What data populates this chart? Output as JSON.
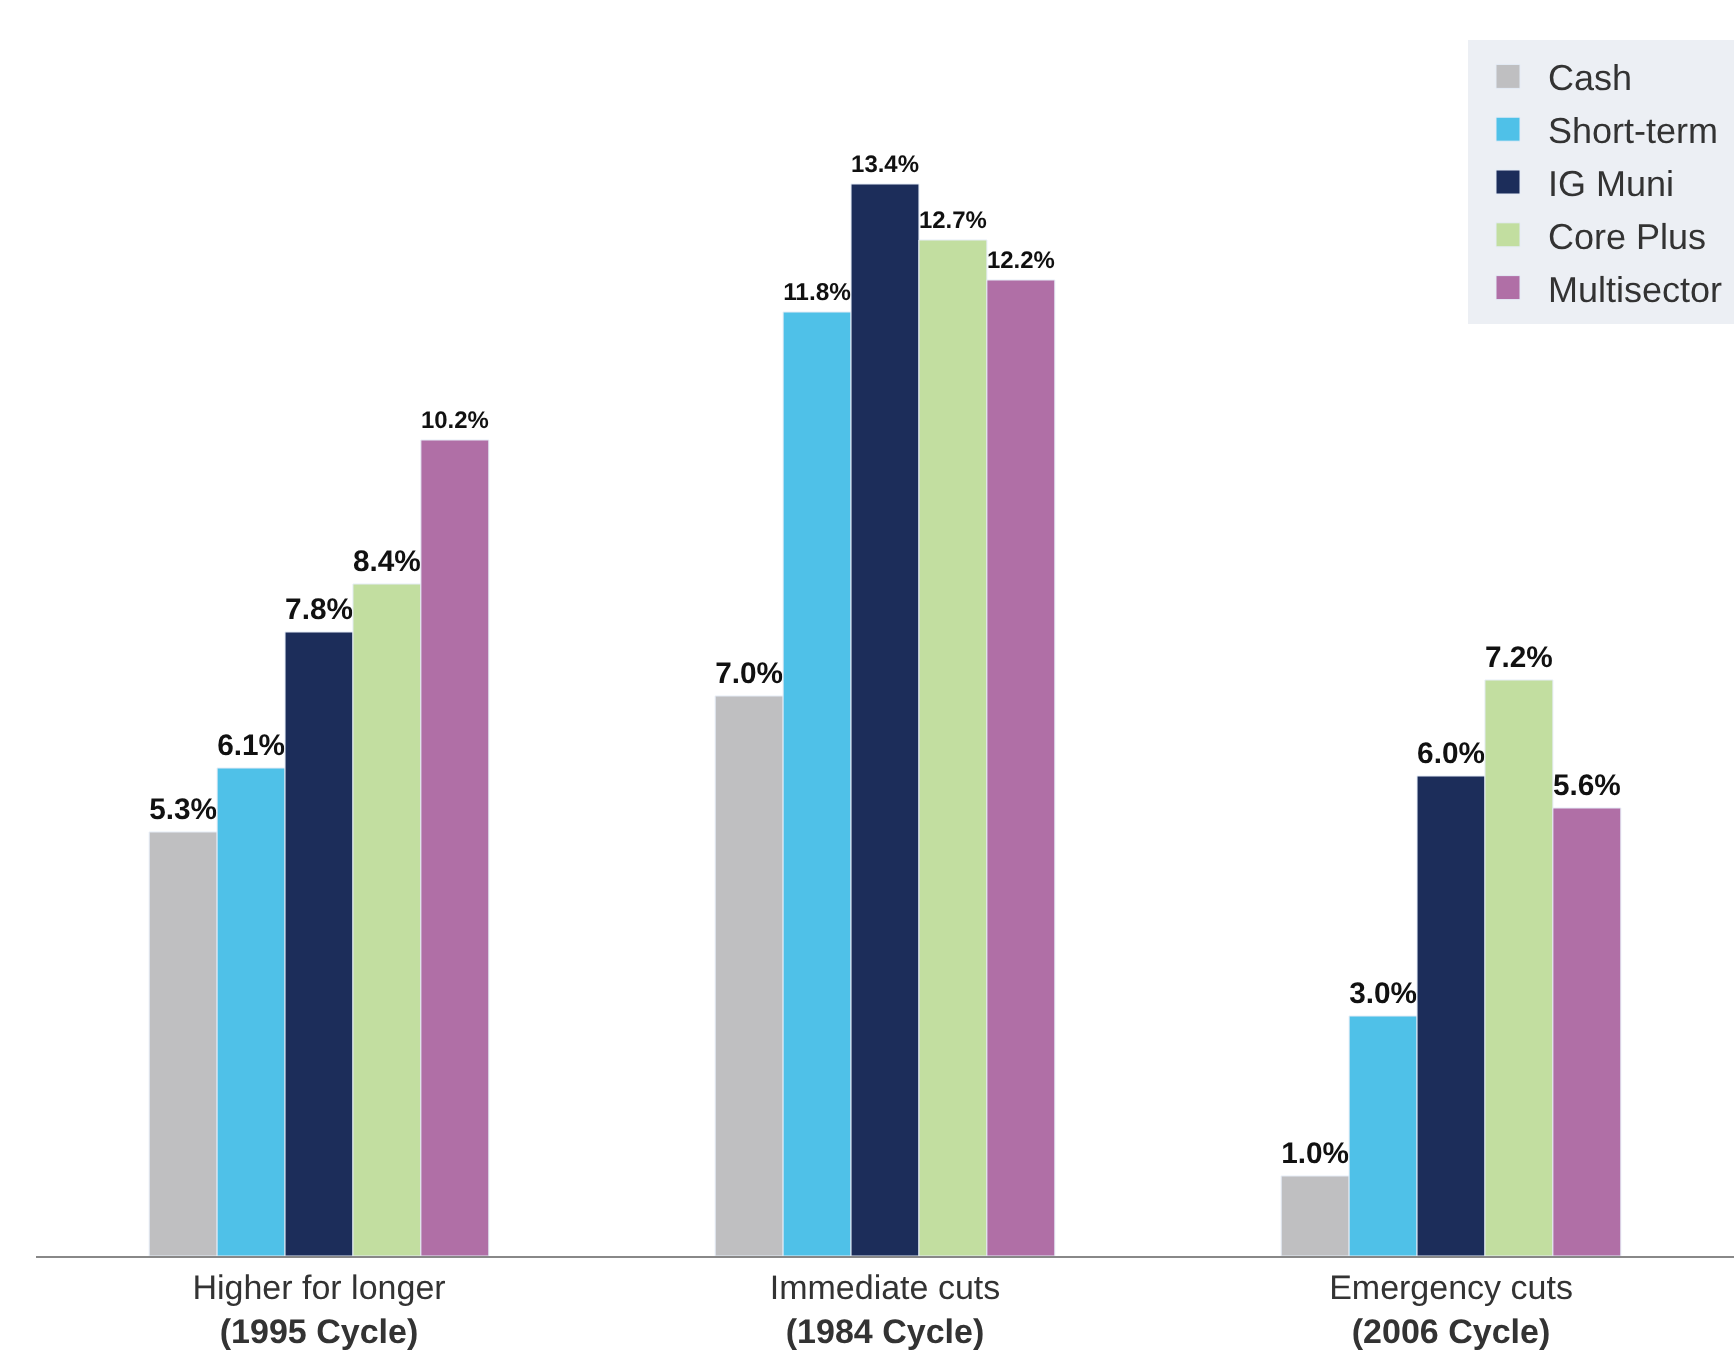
{
  "chart_data": {
    "type": "bar",
    "categories": [
      "Higher for longer\n(1995 Cycle)",
      "Immediate cuts\n(1984 Cycle)",
      "Emergency cuts\n(2006 Cycle)"
    ],
    "series": [
      {
        "name": "Cash",
        "color": "#bfbfc1",
        "values": [
          5.3,
          7.0,
          1.0
        ],
        "value_labels": [
          "5.3%",
          "7.0%",
          "1.0%"
        ]
      },
      {
        "name": "Short-term",
        "color": "#4fc1e8",
        "values": [
          6.1,
          11.8,
          3.0
        ],
        "value_labels": [
          "6.1%",
          "11.8%",
          "3.0%"
        ]
      },
      {
        "name": "IG Muni",
        "color": "#1c2d5a",
        "values": [
          7.8,
          13.4,
          6.0
        ],
        "value_labels": [
          "7.8%",
          "13.4%",
          "6.0%"
        ]
      },
      {
        "name": "Core Plus",
        "color": "#c2dea0",
        "values": [
          8.4,
          12.7,
          7.2
        ],
        "value_labels": [
          "8.4%",
          "12.7%",
          "7.2%"
        ]
      },
      {
        "name": "Multisector",
        "color": "#b06fa6",
        "values": [
          10.2,
          12.2,
          5.6
        ],
        "value_labels": [
          "10.2%",
          "12.2%",
          "5.6%"
        ]
      }
    ],
    "ylim": [
      0,
      15.2
    ],
    "tick_labels": "x",
    "legend": "top right"
  }
}
